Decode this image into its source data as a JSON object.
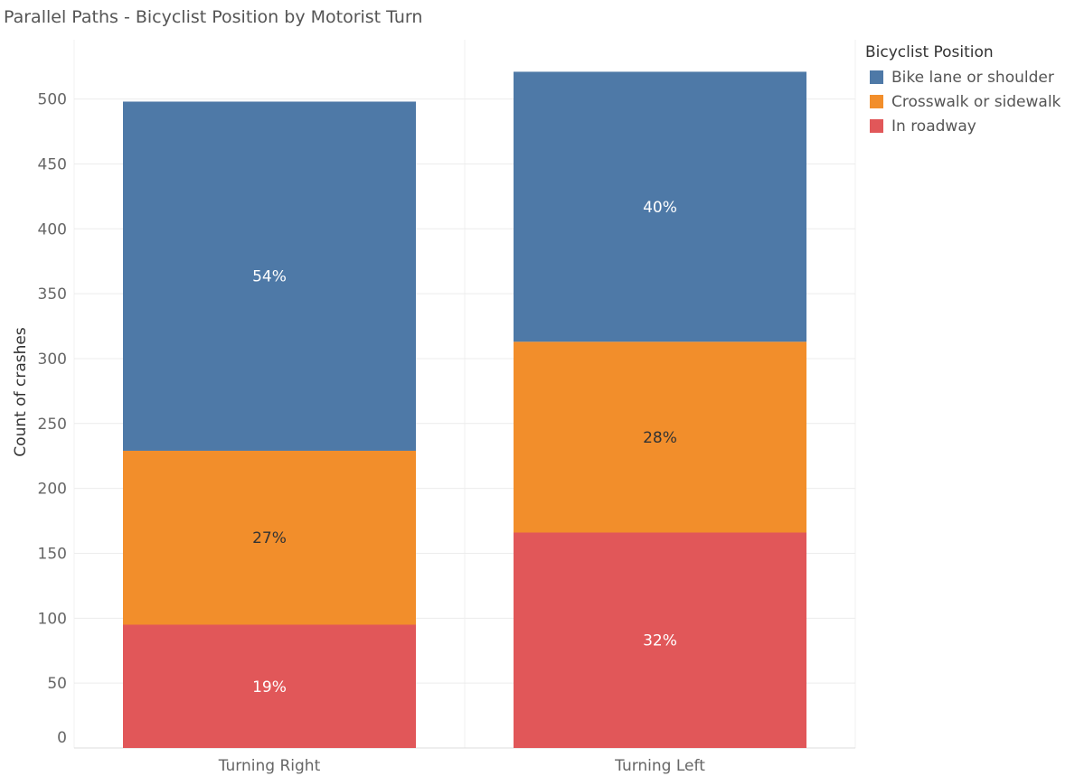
{
  "chart_data": {
    "type": "bar",
    "stacked": true,
    "title": "Parallel Paths - Bicyclist Position by Motorist Turn",
    "xlabel": "",
    "ylabel": "Count of crashes",
    "ylim": [
      0,
      525
    ],
    "yticks": [
      0,
      50,
      100,
      150,
      200,
      250,
      300,
      350,
      400,
      450,
      500
    ],
    "grid": true,
    "legend_position": "right",
    "categories": [
      "Turning Right",
      "Turning Left"
    ],
    "series": [
      {
        "name": "In roadway",
        "color": "#e15759",
        "values": [
          95,
          166
        ],
        "labels": [
          "19%",
          "32%"
        ]
      },
      {
        "name": "Crosswalk or sidewalk",
        "color": "#f28e2b",
        "values": [
          134,
          147
        ],
        "labels": [
          "27%",
          "28%"
        ]
      },
      {
        "name": "Bike lane or shoulder",
        "color": "#4e79a7",
        "values": [
          269,
          208
        ],
        "labels": [
          "54%",
          "40%"
        ]
      }
    ],
    "legend": {
      "title": "Bicyclist Position",
      "entries": [
        {
          "name": "Bike lane or shoulder",
          "color": "#4e79a7"
        },
        {
          "name": "Crosswalk or sidewalk",
          "color": "#f28e2b"
        },
        {
          "name": "In roadway",
          "color": "#e15759"
        }
      ]
    }
  }
}
